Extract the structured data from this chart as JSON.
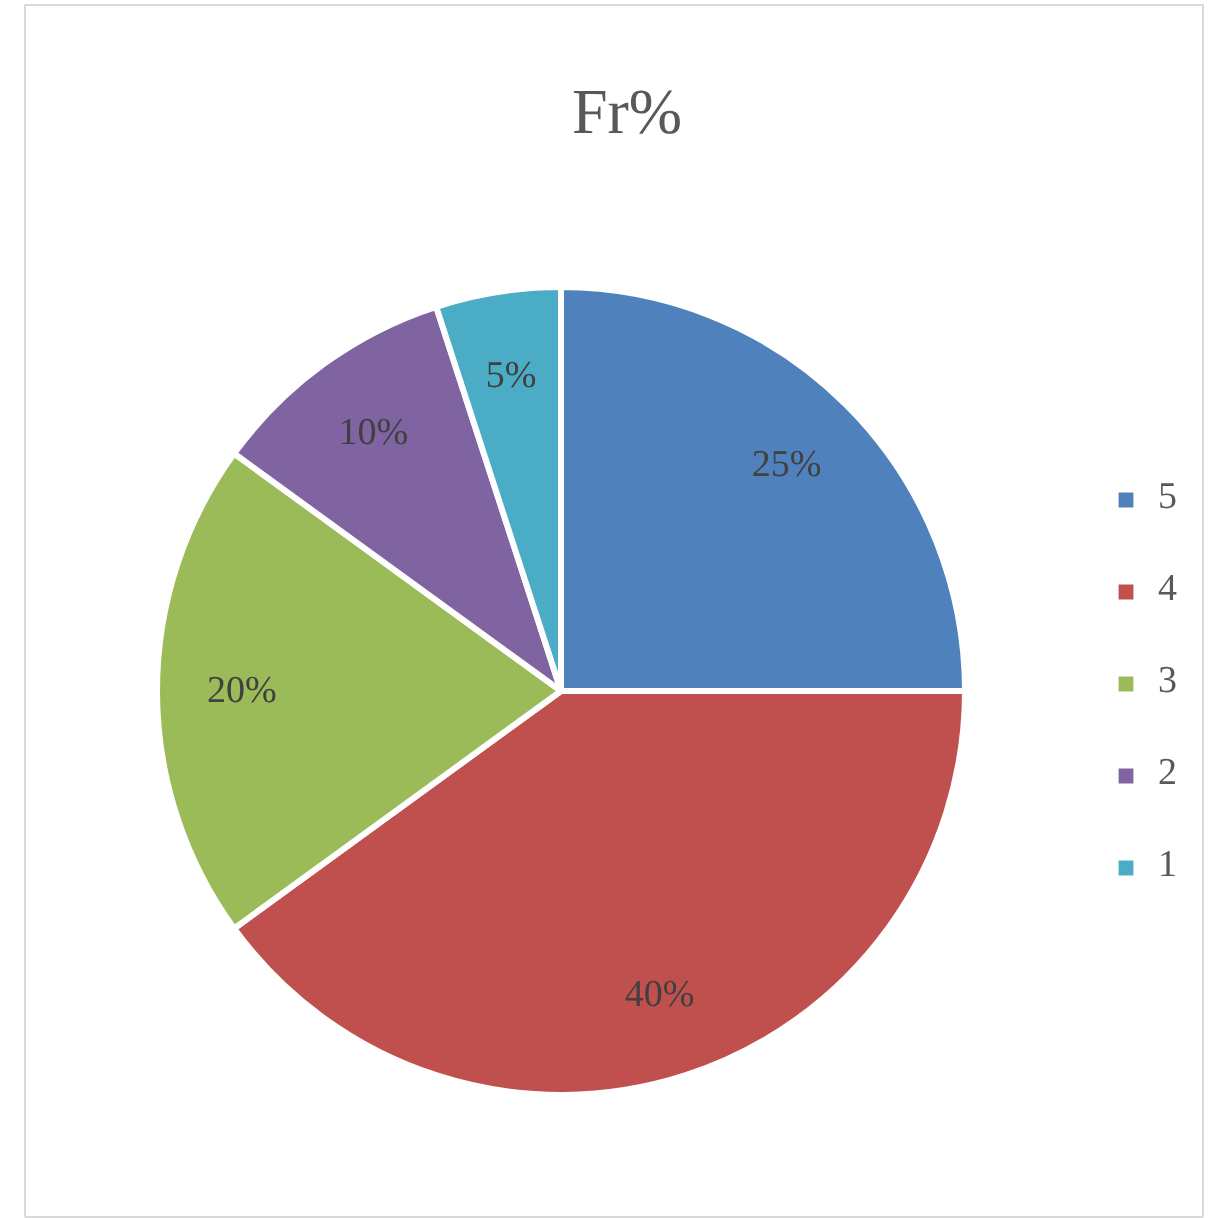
{
  "chart_data": {
    "type": "pie",
    "title": "Fr%",
    "categories": [
      "5",
      "4",
      "3",
      "2",
      "1"
    ],
    "values": [
      25,
      40,
      20,
      10,
      5
    ],
    "colors": [
      "#4f81bd",
      "#c0504d",
      "#9bbb59",
      "#8064a2",
      "#4bacc6"
    ],
    "value_labels": [
      "25%",
      "40%",
      "20%",
      "10%",
      "5%"
    ],
    "legend": "right"
  }
}
